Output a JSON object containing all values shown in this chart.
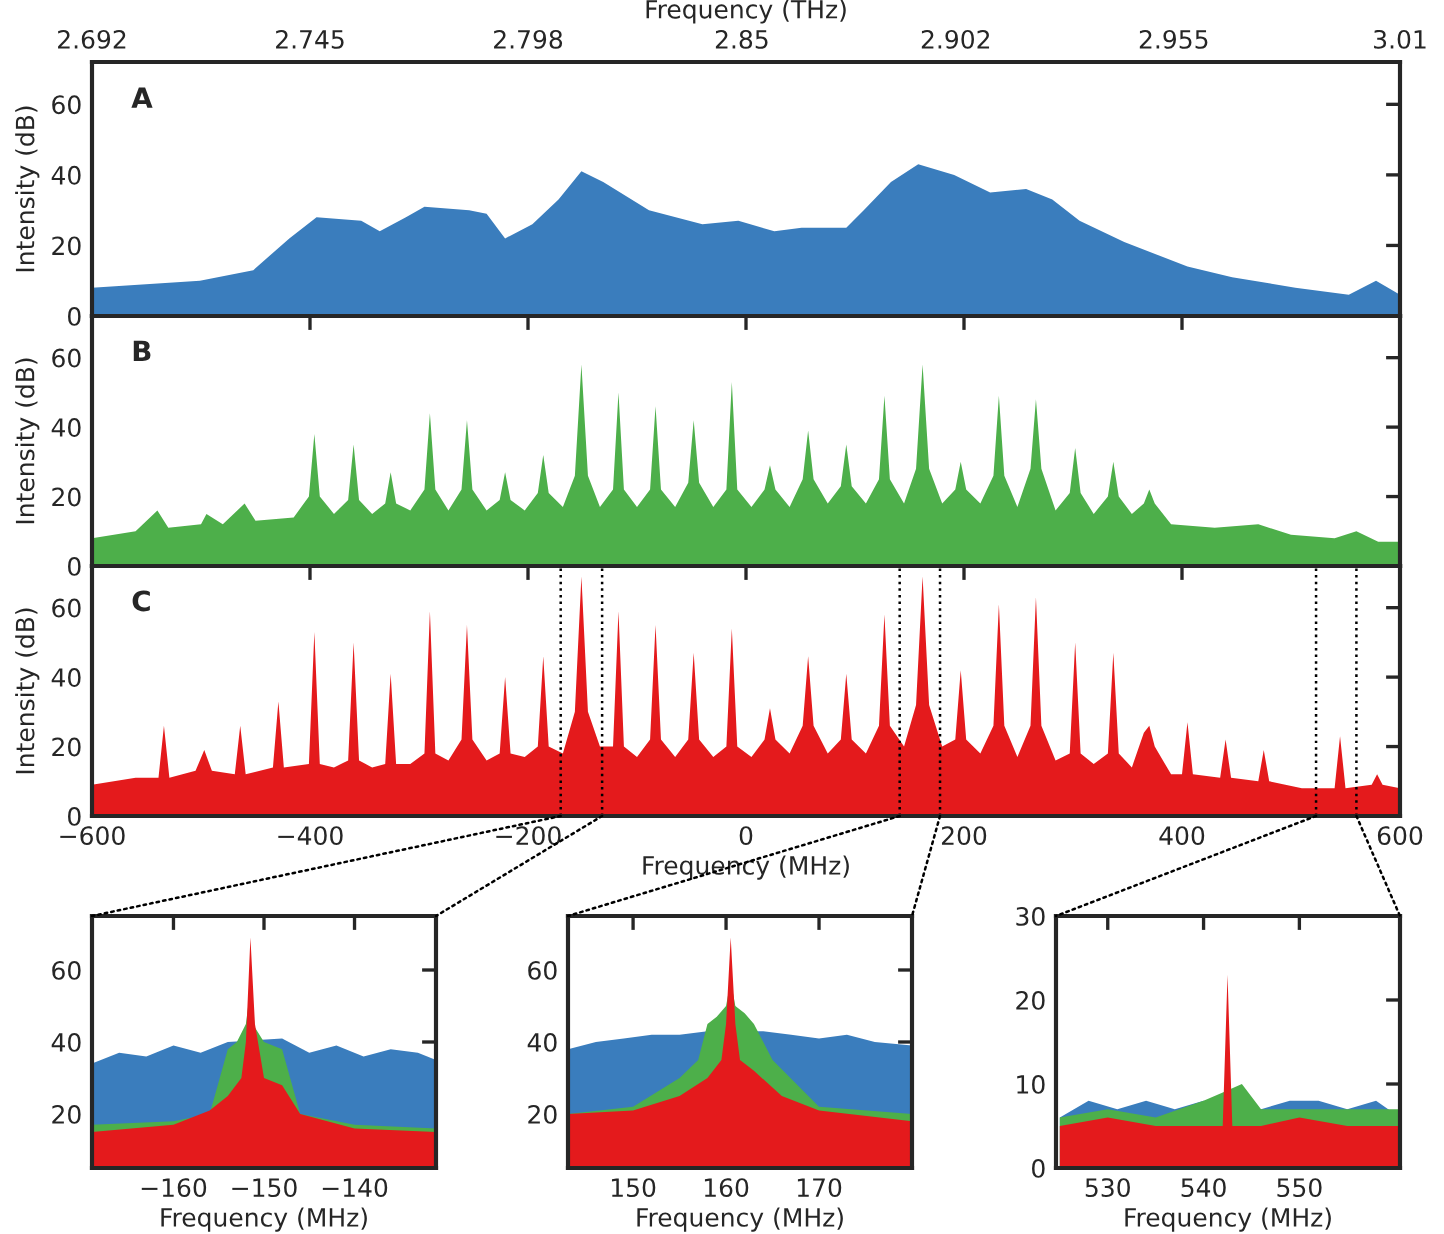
{
  "chart_data": [
    {
      "type": "area",
      "x2label": "Frequency (THz)",
      "ylabel": "Intensity (dB)",
      "annotations": [
        "A"
      ],
      "xlim": [
        -600,
        600
      ],
      "xticks": [
        -600,
        -400,
        -200,
        0,
        200,
        400,
        600
      ],
      "x2lim": [
        2.692,
        3.01
      ],
      "x2ticks": [
        2.692,
        2.745,
        2.798,
        2.85,
        2.902,
        2.955,
        3.01
      ],
      "ylim": [
        0,
        72
      ],
      "yticks": [
        0,
        20,
        40,
        60
      ],
      "tick_labels": "y",
      "series": [
        {
          "color": "#3a7dbd",
          "x": [
            -600,
            -501,
            -452,
            -419,
            -394,
            -353,
            -336,
            -312,
            -295,
            -254,
            -238,
            -221,
            -196,
            -172,
            -151,
            -131,
            -89,
            -40,
            -7,
            26,
            51,
            92,
            108,
            133,
            158,
            191,
            224,
            257,
            281,
            306,
            347,
            405,
            446,
            504,
            553,
            578,
            600
          ],
          "values": [
            8,
            10,
            13,
            22,
            28,
            27,
            24,
            28,
            31,
            30,
            29,
            22,
            26,
            33,
            41,
            38,
            30,
            26,
            27,
            24,
            25,
            25,
            30,
            38,
            43,
            40,
            35,
            36,
            33,
            27,
            21,
            14,
            11,
            8,
            6,
            10,
            6
          ]
        }
      ]
    },
    {
      "type": "area",
      "ylabel": "Intensity (dB)",
      "annotations": [
        "B"
      ],
      "xlim": [
        -600,
        600
      ],
      "xticks": [
        -600,
        -400,
        -200,
        0,
        200,
        400,
        600
      ],
      "ylim": [
        0,
        72
      ],
      "yticks": [
        0,
        20,
        40,
        60
      ],
      "tick_labels": "y",
      "series": [
        {
          "color": "#4daf4a",
          "x": [
            -600,
            -560,
            -540,
            -530,
            -500,
            -495,
            -480,
            -460,
            -450,
            -415,
            -401,
            -396,
            -391,
            -378,
            -365,
            -360,
            -355,
            -343,
            -331,
            -326,
            -321,
            -308,
            -295,
            -290,
            -285,
            -273,
            -261,
            -256,
            -251,
            -238,
            -226,
            -221,
            -216,
            -203,
            -191,
            -186,
            -181,
            -168,
            -157,
            -151,
            -145,
            -134,
            -122,
            -117,
            -112,
            -100,
            -88,
            -83,
            -78,
            -65,
            -53,
            -48,
            -43,
            -30,
            -18,
            -13,
            -8,
            5,
            17,
            22,
            27,
            40,
            52,
            57,
            62,
            75,
            87,
            92,
            97,
            110,
            122,
            127,
            132,
            145,
            156,
            162,
            168,
            180,
            192,
            197,
            202,
            215,
            227,
            232,
            237,
            249,
            261,
            266,
            271,
            284,
            297,
            302,
            307,
            319,
            332,
            337,
            342,
            354,
            365,
            370,
            375,
            390,
            430,
            470,
            500,
            540,
            560,
            580,
            600
          ],
          "values": [
            8,
            10,
            16,
            11,
            12,
            15,
            12,
            18,
            13,
            14,
            20,
            38,
            20,
            15,
            19,
            35,
            19,
            15,
            18,
            27,
            18,
            16,
            22,
            44,
            22,
            16,
            22,
            42,
            22,
            16,
            19,
            27,
            19,
            16,
            21,
            32,
            21,
            17,
            26,
            58,
            26,
            17,
            22,
            50,
            22,
            17,
            22,
            46,
            22,
            17,
            24,
            42,
            24,
            17,
            22,
            53,
            22,
            17,
            22,
            29,
            22,
            17,
            25,
            39,
            25,
            18,
            23,
            35,
            23,
            18,
            25,
            49,
            25,
            18,
            28,
            58,
            28,
            18,
            22,
            30,
            22,
            18,
            26,
            49,
            26,
            17,
            28,
            48,
            28,
            16,
            21,
            34,
            21,
            15,
            20,
            30,
            20,
            15,
            18,
            22,
            18,
            12,
            11,
            12,
            9,
            8,
            10,
            7,
            7
          ]
        }
      ]
    },
    {
      "type": "area",
      "xlabel": "Frequency (MHz)",
      "ylabel": "Intensity (dB)",
      "annotations": [
        "C"
      ],
      "xlim": [
        -600,
        600
      ],
      "xticks": [
        {
          "value": -600,
          "label": "−600"
        },
        {
          "value": -400,
          "label": "−400"
        },
        {
          "value": -200,
          "label": "−200"
        },
        0,
        200,
        400,
        600
      ],
      "ylim": [
        0,
        72
      ],
      "yticks": [
        0,
        20,
        40,
        60
      ],
      "ref_lines": [
        {
          "axis": "x",
          "value": -170,
          "color": "#000000",
          "line_style": "dotted"
        },
        {
          "axis": "x",
          "value": -132,
          "color": "#000000",
          "line_style": "dotted"
        },
        {
          "axis": "x",
          "value": 141,
          "color": "#000000",
          "line_style": "dotted"
        },
        {
          "axis": "x",
          "value": 178,
          "color": "#000000",
          "line_style": "dotted"
        },
        {
          "axis": "x",
          "value": 523,
          "color": "#000000",
          "line_style": "dotted"
        },
        {
          "axis": "x",
          "value": 560,
          "color": "#000000",
          "line_style": "dotted"
        }
      ],
      "series": [
        {
          "color": "#e41a1c",
          "x": [
            -600,
            -560,
            -539,
            -534,
            -529,
            -505,
            -497,
            -490,
            -469,
            -464,
            -459,
            -434,
            -429,
            -424,
            -401,
            -396,
            -391,
            -378,
            -365,
            -360,
            -355,
            -343,
            -331,
            -326,
            -321,
            -308,
            -295,
            -290,
            -285,
            -273,
            -261,
            -256,
            -251,
            -238,
            -226,
            -221,
            -216,
            -203,
            -191,
            -186,
            -181,
            -168,
            -157,
            -151,
            -145,
            -134,
            -122,
            -117,
            -112,
            -100,
            -88,
            -83,
            -78,
            -65,
            -53,
            -48,
            -43,
            -30,
            -18,
            -13,
            -8,
            5,
            17,
            22,
            27,
            40,
            52,
            57,
            62,
            75,
            87,
            92,
            97,
            110,
            122,
            127,
            132,
            145,
            156,
            162,
            168,
            180,
            192,
            197,
            202,
            215,
            227,
            232,
            237,
            249,
            261,
            266,
            271,
            284,
            297,
            302,
            307,
            319,
            332,
            337,
            342,
            354,
            365,
            370,
            375,
            390,
            400,
            405,
            410,
            435,
            440,
            445,
            470,
            475,
            480,
            510,
            540,
            545,
            550,
            574,
            579,
            584,
            600
          ],
          "values": [
            9,
            11,
            11,
            26,
            11,
            13,
            19,
            13,
            12,
            26,
            12,
            14,
            33,
            14,
            15,
            53,
            15,
            14,
            16,
            50,
            16,
            14,
            15,
            41,
            15,
            15,
            18,
            59,
            18,
            16,
            22,
            55,
            22,
            16,
            18,
            40,
            18,
            17,
            20,
            46,
            20,
            18,
            30,
            69,
            30,
            20,
            20,
            59,
            20,
            17,
            22,
            55,
            22,
            17,
            22,
            47,
            22,
            17,
            20,
            54,
            20,
            17,
            22,
            31,
            22,
            18,
            26,
            46,
            26,
            18,
            22,
            41,
            22,
            18,
            26,
            58,
            26,
            20,
            32,
            69,
            32,
            20,
            22,
            42,
            22,
            18,
            26,
            61,
            26,
            17,
            26,
            63,
            26,
            16,
            18,
            50,
            18,
            15,
            18,
            47,
            18,
            14,
            24,
            26,
            20,
            12,
            12,
            27,
            12,
            11,
            22,
            11,
            10,
            19,
            10,
            8,
            8,
            23,
            8,
            9,
            12,
            9,
            8
          ]
        }
      ]
    },
    {
      "type": "area",
      "xlabel": "Frequency (MHz)",
      "xlim": [
        -169,
        -131
      ],
      "xticks": [
        {
          "value": -160,
          "label": "−160"
        },
        {
          "value": -150,
          "label": "−150"
        },
        {
          "value": -140,
          "label": "−140"
        }
      ],
      "ylim": [
        5,
        75
      ],
      "yticks": [
        20,
        40,
        60
      ],
      "series": [
        {
          "color": "#3a7dbd",
          "x": [
            -169,
            -166,
            -163,
            -160,
            -157,
            -154,
            -148,
            -145,
            -142,
            -139,
            -136,
            -133,
            -131
          ],
          "values": [
            34,
            37,
            36,
            39,
            37,
            40,
            41,
            37,
            39,
            36,
            38,
            37,
            35
          ]
        },
        {
          "color": "#4daf4a",
          "x": [
            -169,
            -160,
            -156,
            -154,
            -153,
            -152,
            -151.5,
            -151,
            -150,
            -148,
            -146,
            -140,
            -131
          ],
          "values": [
            17,
            18,
            20,
            38,
            40,
            45,
            55,
            44,
            40,
            38,
            20,
            17,
            16
          ]
        },
        {
          "color": "#e41a1c",
          "x": [
            -169,
            -160,
            -156,
            -154,
            -152.5,
            -152,
            -151.5,
            -151,
            -150,
            -148,
            -146,
            -140,
            -131
          ],
          "values": [
            15,
            17,
            21,
            25,
            30,
            40,
            69,
            45,
            30,
            28,
            20,
            16,
            15
          ]
        }
      ]
    },
    {
      "type": "area",
      "xlabel": "Frequency (MHz)",
      "xlim": [
        143,
        180
      ],
      "xticks": [
        150,
        160,
        170
      ],
      "ylim": [
        5,
        75
      ],
      "yticks": [
        20,
        40,
        60
      ],
      "series": [
        {
          "color": "#3a7dbd",
          "x": [
            143,
            146,
            149,
            152,
            155,
            158,
            164,
            167,
            170,
            173,
            176,
            180
          ],
          "values": [
            38,
            40,
            41,
            42,
            42,
            43,
            43,
            42,
            41,
            42,
            40,
            39
          ]
        },
        {
          "color": "#4daf4a",
          "x": [
            143,
            150,
            155,
            157,
            158,
            159,
            160,
            160.5,
            161,
            162,
            163,
            165,
            170,
            180
          ],
          "values": [
            20,
            22,
            30,
            35,
            45,
            47,
            50,
            57,
            50,
            48,
            45,
            35,
            22,
            20
          ]
        },
        {
          "color": "#e41a1c",
          "x": [
            143,
            150,
            155,
            158,
            159.5,
            160,
            160.5,
            161,
            161.5,
            163,
            166,
            170,
            180
          ],
          "values": [
            20,
            21,
            25,
            30,
            35,
            45,
            69,
            45,
            35,
            32,
            25,
            21,
            18
          ]
        }
      ]
    },
    {
      "type": "area",
      "xlabel": "Frequency (MHz)",
      "xlim": [
        524.6,
        560.5
      ],
      "xticks": [
        530,
        540,
        550
      ],
      "ylim": [
        0,
        30
      ],
      "yticks": [
        0,
        10,
        20,
        30
      ],
      "series": [
        {
          "color": "#3a7dbd",
          "x": [
            525,
            528,
            531,
            534,
            537,
            540,
            546,
            549,
            552,
            555,
            558,
            560.5
          ],
          "values": [
            6,
            8,
            7,
            8,
            7,
            8,
            7,
            8,
            8,
            7,
            8,
            6
          ]
        },
        {
          "color": "#4daf4a",
          "x": [
            525,
            530,
            535,
            540,
            542,
            544,
            546,
            550,
            555,
            560.5
          ],
          "values": [
            6,
            7,
            6,
            8,
            9,
            10,
            7,
            7,
            7,
            7
          ]
        },
        {
          "color": "#e41a1c",
          "x": [
            525,
            530,
            535,
            540,
            542,
            542.5,
            543,
            546,
            550,
            555,
            560.5
          ],
          "values": [
            5,
            6,
            5,
            5,
            5,
            23,
            5,
            5,
            6,
            5,
            5
          ]
        }
      ]
    }
  ]
}
